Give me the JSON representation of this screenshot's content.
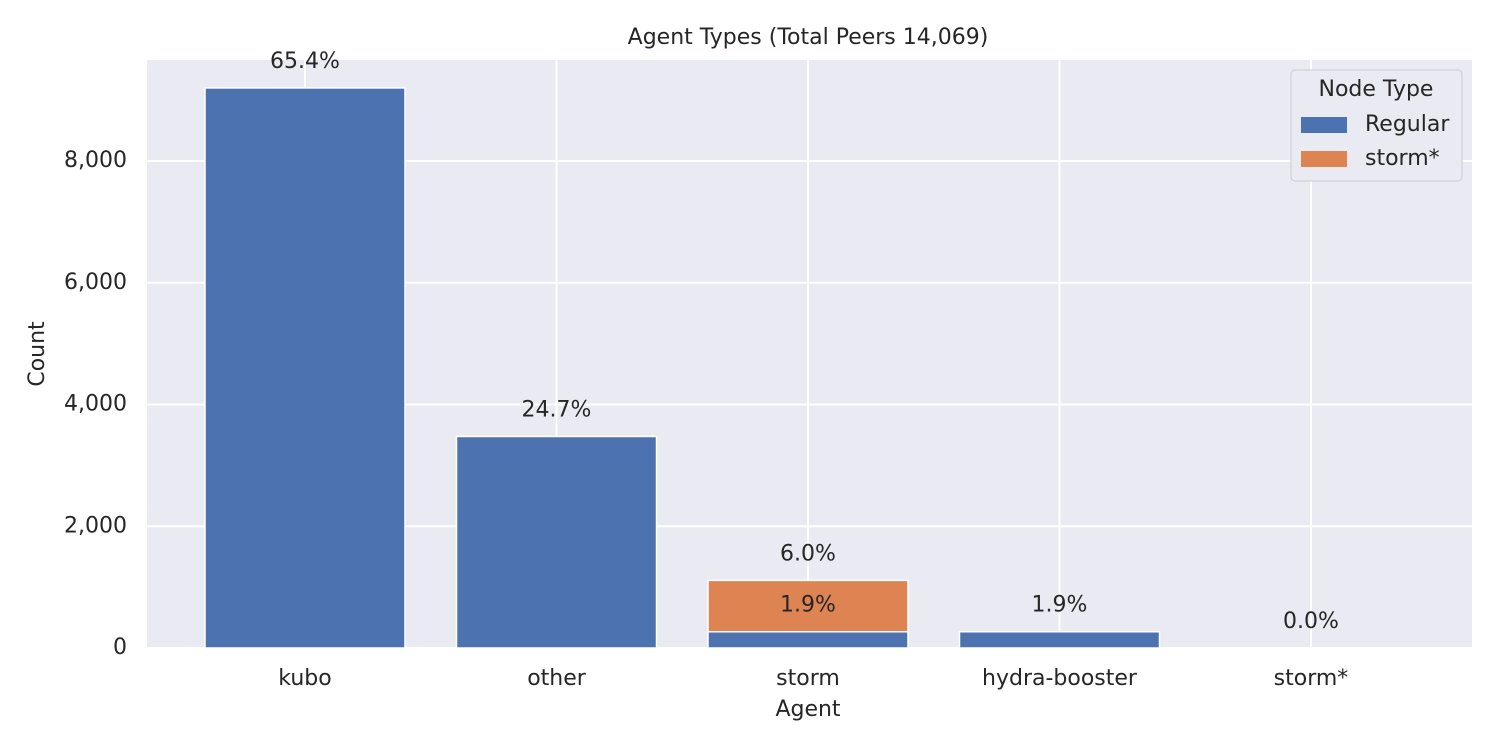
{
  "chart_data": {
    "type": "stacked_bar",
    "title": "Agent Types (Total Peers 14,069)",
    "x_label": "Agent",
    "y_label": "Count",
    "categories": [
      "kubo",
      "other",
      "storm",
      "hydra-booster",
      "storm*"
    ],
    "series": [
      {
        "name": "Regular",
        "color": "#4c72b0",
        "values": [
          9201,
          3475,
          267,
          267,
          0
        ],
        "percent_labels": [
          "65.4%",
          "24.7%",
          "1.9%",
          "1.9%",
          "0.0%"
        ]
      },
      {
        "name": "storm*",
        "color": "#dd8452",
        "values": [
          0,
          0,
          844,
          0,
          0
        ],
        "percent_labels": [
          null,
          null,
          "6.0%",
          null,
          null
        ]
      }
    ],
    "ylim": [
      0,
      9660
    ],
    "yticks": [
      0,
      {
        "value": 2000,
        "label": "2,000"
      },
      {
        "value": 4000,
        "label": "4,000"
      },
      {
        "value": 6000,
        "label": "6,000"
      },
      {
        "value": 8000,
        "label": "8,000"
      }
    ],
    "grid": true,
    "legend": {
      "title": "Node Type",
      "position": "upper right"
    }
  }
}
